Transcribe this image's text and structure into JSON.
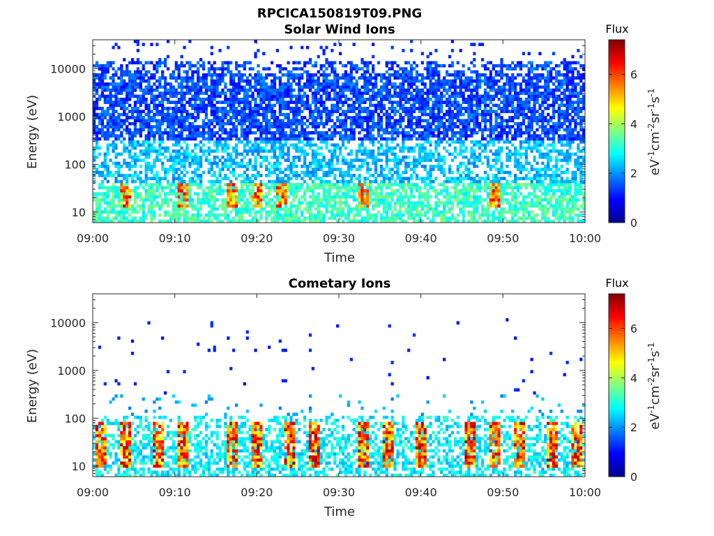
{
  "figure": {
    "title": "RPCICA150819T09.PNG",
    "colormap": "jet"
  },
  "chart_data": [
    {
      "type": "heatmap",
      "title": "Solar Wind Ions",
      "xlabel": "Time",
      "ylabel": "Energy (eV)",
      "x_ticks": [
        "09:00",
        "09:10",
        "09:20",
        "09:30",
        "09:40",
        "09:50",
        "10:00"
      ],
      "xlim": [
        "09:00",
        "10:00"
      ],
      "y_ticks": [
        "10",
        "100",
        "1000",
        "10000"
      ],
      "y_scale": "log",
      "ylim": [
        6,
        40000
      ],
      "colorbar": {
        "title": "Flux",
        "label": "eV-1cm-2sr-1s-1",
        "ticks": [
          "0",
          "2",
          "4",
          "6"
        ],
        "range": [
          0,
          7.4
        ]
      },
      "features": {
        "background_flux": "1 to 3 spread across 10 eV – 15 keV, denser near 1–10 keV",
        "low_energy_band": "2.5 to 4 between 6 and 40 eV",
        "hot_bursts_at": [
          "09:04",
          "09:11",
          "09:17",
          "09:20",
          "09:23",
          "09:33",
          "09:49"
        ]
      }
    },
    {
      "type": "heatmap",
      "title": "Cometary Ions",
      "xlabel": "Time",
      "ylabel": "Energy (eV)",
      "x_ticks": [
        "09:00",
        "09:10",
        "09:20",
        "09:30",
        "09:40",
        "09:50",
        "10:00"
      ],
      "xlim": [
        "09:00",
        "10:00"
      ],
      "y_ticks": [
        "10",
        "100",
        "1000",
        "10000"
      ],
      "y_scale": "log",
      "ylim": [
        6,
        40000
      ],
      "colorbar": {
        "title": "Flux",
        "label": "eV-1cm-2sr-1s-1",
        "ticks": [
          "0",
          "2",
          "4",
          "6"
        ],
        "range": [
          0,
          7.4
        ]
      },
      "features": {
        "sparse_high_energy_points": "flux ~1 scattered between 300 eV and 12 keV",
        "main_band": "2 to 7 between 6 and 120 eV",
        "hot_bursts_at": [
          "09:01",
          "09:04",
          "09:08",
          "09:11",
          "09:17",
          "09:20",
          "09:24",
          "09:27",
          "09:33",
          "09:36",
          "09:40",
          "09:46",
          "09:49",
          "09:52",
          "09:56",
          "09:59"
        ]
      }
    }
  ]
}
